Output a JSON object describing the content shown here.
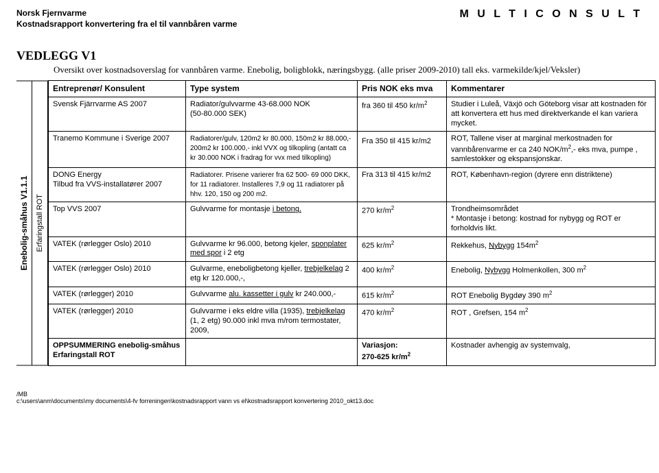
{
  "header": {
    "org": "Norsk Fjernvarme",
    "subtitle": "Kostnadsrapport konvertering fra el til vannbåren varme",
    "brand": "M U L T I C O N S U L T"
  },
  "title": "VEDLEGG V1",
  "intro1": "Oversikt over kostnadsoverslag for vannbåren varme. Enebolig, boligblokk, næringsbygg. (alle priser 2009-2010) tall eks. varmekilde/kjel/Veksler)",
  "sideLabelOuter": "Enebolig-småhus V1.1.1",
  "sideLabelInner": "Erfaringstall ROT",
  "columns": {
    "c1": "Entreprenør/ Konsulent",
    "c2": "Type system",
    "c3": "Pris NOK eks mva",
    "c4": "Kommentarer"
  },
  "rows": [
    {
      "c1": "Svensk Fjärrvarme AS 2007",
      "c2a": "Radiator/gulvvarme 43-68.000 NOK",
      "c2b": "(50-80.000 SEK)",
      "c3_html": "fra 360 til 450 kr/m<sup>2</sup>",
      "c4": "Studier i Luleå, Växjö och Göteborg visar att kostnaden för att konvertera ett hus med direktverkande el kan variera mycket."
    },
    {
      "c1": "Tranemo Kommune i Sverige 2007",
      "c2_html": "<span class='small'>Radiatorer/gulv, 120m2 kr 80.000, 150m2 kr 88.000,- 200m2 kr 100.000,- inkl VVX og tilkopling (antatt ca kr 30.000 NOK i fradrag for vvx med tilkopling)</span>",
      "c3_html": "<span class='spaced'></span>Fra 350 til 415 kr/m2",
      "c4_html": "ROT, Tallene viser at marginal merkostnaden for vannbårenvarme er ca 240 NOK/m<sup>2</sup>,- eks mva, pumpe , samlestokker og ekspansjonskar."
    },
    {
      "c1_html": "DONG Energy<br>Tilbud fra VVS-installatører 2007",
      "c2_html": "<span class='small'>Radiatorer. Prisene varierer fra 62 500- 69 000 DKK, for 11 radiatorer. Installeres 7,9 og 11 radiatorer på hhv. 120, 150 og 200 m2.</span>",
      "c3": "Fra 313 til 415 kr/m2",
      "c4": "ROT, København-region (dyrere enn distriktene)"
    },
    {
      "c1": "Top VVS 2007",
      "c2_html": "Gulvvarme for montasje <u>i betong.</u>",
      "c3_html": "270 kr/m<sup>2</sup>",
      "c4": " Trondheimsområdet\n* Montasje i betong: kostnad for nybygg og ROT er forholdvis likt."
    },
    {
      "c1": "VATEK (rørlegger Oslo) 2010",
      "c2_html": "Gulvvarme kr 96.000, betong kjeler, <u>sponplater med spor</u> i 2 etg",
      "c3_html": "625 kr/m<sup>2</sup>",
      "c4_html": "Rekkehus, <u>Nybygg</u> 154m<sup>2</sup>"
    },
    {
      "c1": "VATEK (rørlegger Oslo) 2010",
      "c2_html": "Gulvarme, eneboligbetong kjeller, <u>trebjelkelag</u> 2 etg kr 120.000,-,",
      "c3_html": "400 kr/m<sup>2</sup>",
      "c4_html": "Enebolig, <u>Nybygg</u> Holmenkollen, 300 m<sup>2</sup>"
    },
    {
      "c1": "VATEK (rørlegger) 2010",
      "c2_html": "Gulvvarme <u>alu. kassetter i gulv</u> kr 240.000,-",
      "c3_html": "615 kr/m<sup>2</sup>",
      "c4_html": "ROT Enebolig Bygdøy 390 m<sup>2</sup>"
    },
    {
      "c1": "VATEK (rørlegger) 2010",
      "c2_html": "Gulvvarme i eks eldre villa (1935), <u>trebjelkelag</u> (1, 2 etg) 90.000 inkl mva m/rom termostater, 2009,",
      "c3_html": "470 kr/m<sup>2</sup>",
      "c4_html": "ROT , Grefsen, 154 m<sup>2</sup>"
    },
    {
      "c1_html": "<b>OPPSUMMERING enebolig-småhus Erfaringstall ROT</b>",
      "c2": "",
      "c3_html": "<b>Variasjon:<br>270-625 kr/m<sup>2</sup></b>",
      "c4": "Kostnader avhengig av systemvalg,"
    }
  ],
  "footer": {
    "l1": "/MB",
    "l2": "c:\\users\\anm\\documents\\my documents\\4-fv forreningen\\kostnadsrapport vann vs el\\kostnadsrapport konvertering 2010_okt13.doc"
  }
}
